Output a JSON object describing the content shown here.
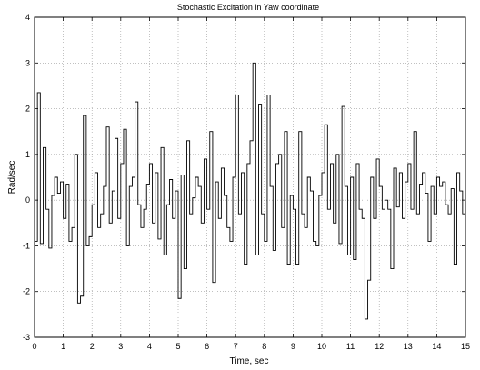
{
  "chart_data": {
    "type": "line",
    "title": "Stochastic Excitation in Yaw coordinate",
    "xlabel": "Time, sec",
    "ylabel": "Rad/sec",
    "xlim": [
      0,
      15
    ],
    "ylim": [
      -3,
      4
    ],
    "xticks": [
      0,
      1,
      2,
      3,
      4,
      5,
      6,
      7,
      8,
      9,
      10,
      11,
      12,
      13,
      14,
      15
    ],
    "yticks": [
      -3,
      -2,
      -1,
      0,
      1,
      2,
      3,
      4
    ],
    "grid": true,
    "line_color": "#000000",
    "series": [
      {
        "x": [
          0,
          0.1,
          0.2,
          0.3,
          0.4,
          0.5,
          0.6,
          0.7,
          0.8,
          0.9,
          1.0,
          1.1,
          1.2,
          1.3,
          1.4,
          1.5,
          1.6,
          1.7,
          1.8,
          1.9,
          2.0,
          2.1,
          2.2,
          2.3,
          2.4,
          2.5,
          2.6,
          2.7,
          2.8,
          2.9,
          3.0,
          3.1,
          3.2,
          3.3,
          3.4,
          3.5,
          3.6,
          3.7,
          3.8,
          3.9,
          4.0,
          4.1,
          4.2,
          4.3,
          4.4,
          4.5,
          4.6,
          4.7,
          4.8,
          4.9,
          5.0,
          5.1,
          5.2,
          5.3,
          5.4,
          5.5,
          5.6,
          5.7,
          5.8,
          5.9,
          6.0,
          6.1,
          6.2,
          6.3,
          6.4,
          6.5,
          6.6,
          6.7,
          6.8,
          6.9,
          7.0,
          7.1,
          7.2,
          7.3,
          7.4,
          7.5,
          7.6,
          7.7,
          7.8,
          7.9,
          8.0,
          8.1,
          8.2,
          8.3,
          8.4,
          8.5,
          8.6,
          8.7,
          8.8,
          8.9,
          9.0,
          9.1,
          9.2,
          9.3,
          9.4,
          9.5,
          9.6,
          9.7,
          9.8,
          9.9,
          10.0,
          10.1,
          10.2,
          10.3,
          10.4,
          10.5,
          10.6,
          10.7,
          10.8,
          10.9,
          11.0,
          11.1,
          11.2,
          11.3,
          11.4,
          11.5,
          11.6,
          11.7,
          11.8,
          11.9,
          12.0,
          12.1,
          12.2,
          12.3,
          12.4,
          12.5,
          12.6,
          12.7,
          12.8,
          12.9,
          13.0,
          13.1,
          13.2,
          13.3,
          13.4,
          13.5,
          13.6,
          13.7,
          13.8,
          13.9,
          14.0,
          14.1,
          14.2,
          14.3,
          14.4,
          14.5,
          14.6,
          14.7,
          14.8,
          14.9
        ],
        "values": [
          -0.9,
          2.35,
          -0.95,
          1.15,
          -0.2,
          -1.05,
          0.1,
          0.5,
          0.15,
          0.4,
          -0.4,
          0.35,
          -0.9,
          -0.6,
          1.0,
          -2.25,
          -2.1,
          1.85,
          -1.0,
          -0.8,
          -0.1,
          0.6,
          -0.6,
          -0.3,
          0.3,
          1.6,
          -0.5,
          0.2,
          1.35,
          -0.4,
          0.8,
          1.55,
          -1.0,
          0.3,
          0.5,
          2.15,
          -0.1,
          -0.6,
          -0.2,
          0.35,
          0.8,
          -0.5,
          0.6,
          -0.85,
          1.15,
          -1.2,
          -0.1,
          0.45,
          -0.4,
          0.2,
          -2.15,
          0.55,
          -1.5,
          1.3,
          -0.3,
          0.05,
          0.5,
          0.3,
          -0.5,
          0.9,
          -0.2,
          1.5,
          -1.8,
          0.4,
          -0.4,
          0.7,
          0.1,
          -0.6,
          -0.9,
          0.5,
          2.3,
          -0.3,
          0.6,
          -1.4,
          0.8,
          1.3,
          3.0,
          -1.2,
          2.1,
          -0.3,
          -0.9,
          2.3,
          0.3,
          -1.1,
          0.8,
          1.0,
          -0.6,
          1.5,
          -1.4,
          0.1,
          -0.2,
          -1.4,
          1.5,
          -0.3,
          -0.6,
          0.5,
          0.2,
          -0.9,
          -1.0,
          0.1,
          0.6,
          1.65,
          -0.2,
          0.8,
          -0.5,
          1.0,
          -0.95,
          2.05,
          0.3,
          -1.2,
          0.5,
          -1.3,
          0.8,
          -0.2,
          -0.4,
          -2.6,
          -1.75,
          0.5,
          -0.4,
          0.9,
          0.3,
          -0.2,
          0.0,
          -0.2,
          -1.5,
          0.7,
          -0.15,
          0.6,
          -0.4,
          0.4,
          0.8,
          -0.2,
          1.5,
          -0.3,
          0.35,
          0.6,
          0.15,
          -0.9,
          0.3,
          -0.3,
          0.5,
          0.3,
          0.4,
          -0.1,
          -0.3,
          0.25,
          -1.4,
          0.6,
          0.2,
          -0.3
        ]
      }
    ]
  }
}
